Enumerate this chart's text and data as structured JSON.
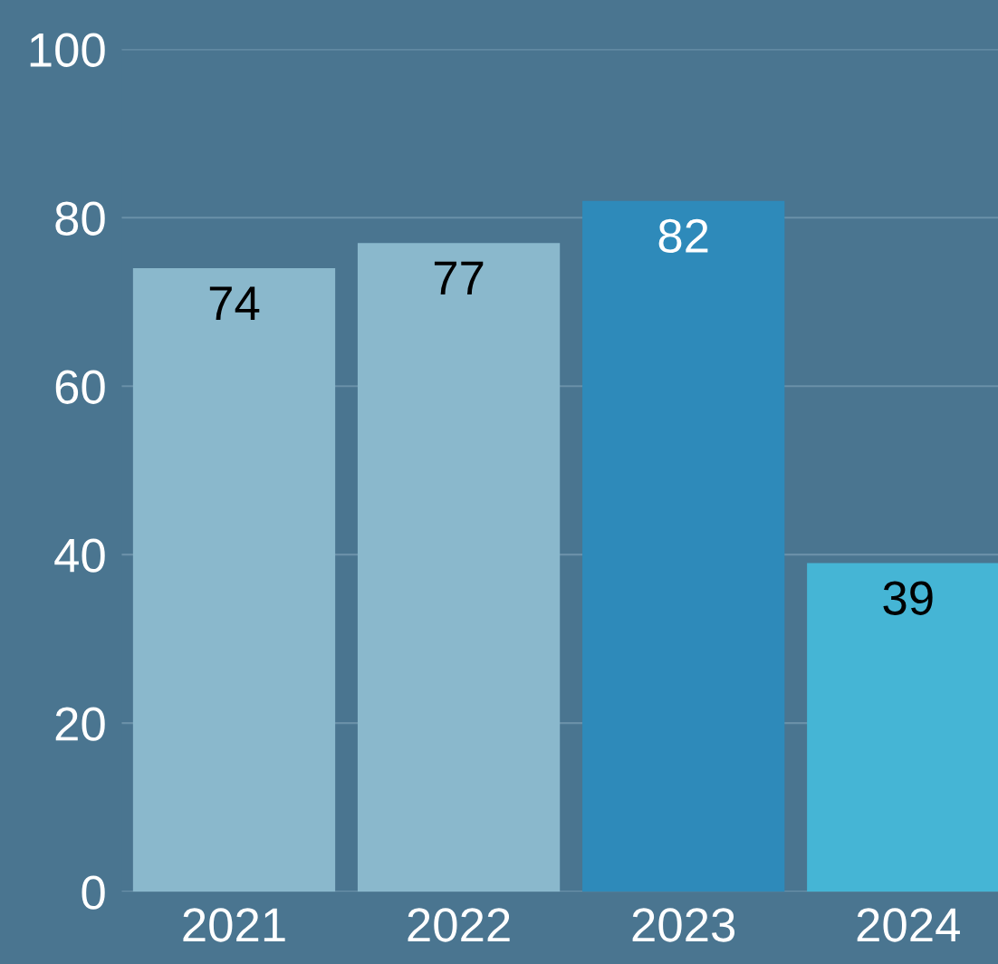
{
  "chart_data": {
    "type": "bar",
    "categories": [
      "2021",
      "2022",
      "2023",
      "2024"
    ],
    "values": [
      74,
      77,
      82,
      39
    ],
    "colors": [
      "#8ab8cc",
      "#8ab8cc",
      "#2e8aba",
      "#45b5d5"
    ],
    "ylim": [
      0,
      100
    ],
    "yticks": [
      0,
      20,
      40,
      60,
      80,
      100
    ],
    "grid": "y",
    "data_labels": true,
    "legend": false
  }
}
